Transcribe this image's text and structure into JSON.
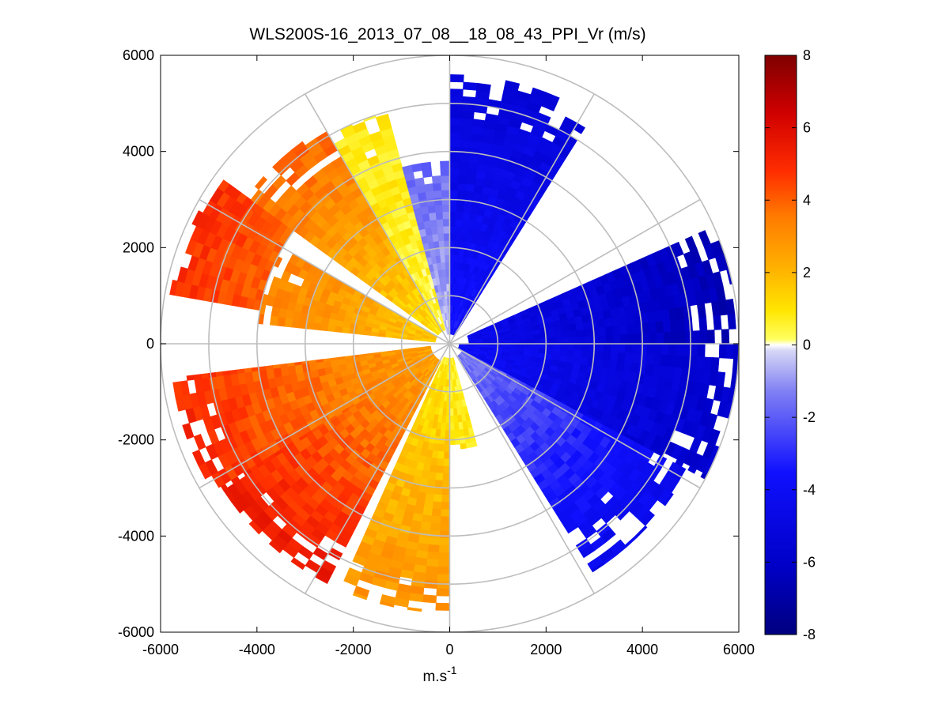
{
  "chart_data": {
    "type": "heatmap",
    "subtype": "polar-ppi-scan",
    "title": "WLS200S-16_2013_07_08__18_08_43_PPI_Vr (m/s)",
    "xlabel_base": "m.s",
    "xlabel_exp": "-1",
    "xlim": [
      -6000,
      6000
    ],
    "ylim": [
      -6000,
      6000
    ],
    "xticks": [
      -6000,
      -4000,
      -2000,
      0,
      2000,
      4000,
      6000
    ],
    "yticks": [
      -6000,
      -4000,
      -2000,
      0,
      2000,
      4000,
      6000
    ],
    "xtick_labels": [
      "-6000",
      "-4000",
      "-2000",
      "0",
      "2000",
      "4000",
      "6000"
    ],
    "ytick_labels": [
      "-6000",
      "-4000",
      "-2000",
      "0",
      "2000",
      "4000",
      "6000"
    ],
    "range_rings": [
      1000,
      2000,
      3000,
      4000,
      5000,
      6000
    ],
    "spoke_angles_deg": [
      0,
      30,
      60,
      90,
      120,
      150,
      180,
      210,
      240,
      270,
      300,
      330
    ],
    "max_range": 6000,
    "colorbar": {
      "min": -8,
      "max": 8,
      "ticks": [
        8,
        6,
        4,
        2,
        0,
        -2,
        -4,
        -6,
        -8
      ],
      "tick_labels": [
        "8",
        "6",
        "4",
        "2",
        "0",
        "-2",
        "-4",
        "-6",
        "-8"
      ],
      "colormap": "blue-white-yellow-red (diverging)"
    },
    "sectors": [
      {
        "name": "north-blue",
        "az_start": 0,
        "az_end": 32,
        "r_min": 200,
        "r_max": 5600,
        "vr_near": -3.5,
        "vr_far": -5.5
      },
      {
        "name": "east-blue",
        "az_start": 66,
        "az_end": 90,
        "r_min": 400,
        "r_max": 6000,
        "vr_near": -4.5,
        "vr_far": -6.8
      },
      {
        "name": "east-southeast-blue",
        "az_start": 90,
        "az_end": 118,
        "r_min": 200,
        "r_max": 6000,
        "vr_near": -4.0,
        "vr_far": -6.0
      },
      {
        "name": "southeast-blue",
        "az_start": 118,
        "az_end": 148,
        "r_min": 300,
        "r_max": 5600,
        "vr_near": -1.5,
        "vr_far": -4.5
      },
      {
        "name": "south-orange",
        "az_start": 180,
        "az_end": 204,
        "r_min": 300,
        "r_max": 5600,
        "vr_near": 0.8,
        "vr_far": 3.0
      },
      {
        "name": "south-southwest-yellow",
        "az_start": 165,
        "az_end": 180,
        "r_min": 300,
        "r_max": 2200,
        "vr_near": 0.6,
        "vr_far": 1.0
      },
      {
        "name": "southwest-red",
        "az_start": 207,
        "az_end": 238,
        "r_min": 400,
        "r_max": 5600,
        "vr_near": 2.5,
        "vr_far": 5.5
      },
      {
        "name": "west-southwest-red",
        "az_start": 238,
        "az_end": 263,
        "r_min": 400,
        "r_max": 5800,
        "vr_near": 2.5,
        "vr_far": 5.0
      },
      {
        "name": "west-northwest-orange",
        "az_start": 276,
        "az_end": 300,
        "r_min": 300,
        "r_max": 4000,
        "vr_near": 1.5,
        "vr_far": 3.5
      },
      {
        "name": "northwest-red",
        "az_start": 280,
        "az_end": 306,
        "r_min": 4000,
        "r_max": 5900,
        "vr_near": 4.0,
        "vr_far": 5.0
      },
      {
        "name": "north-northwest-orange",
        "az_start": 306,
        "az_end": 330,
        "r_min": 300,
        "r_max": 5200,
        "vr_near": 1.0,
        "vr_far": 4.0
      },
      {
        "name": "north-northwest-yellow",
        "az_start": 330,
        "az_end": 345,
        "r_min": 300,
        "r_max": 5000,
        "vr_near": 0.4,
        "vr_far": 1.0
      },
      {
        "name": "north-lightblue",
        "az_start": 345,
        "az_end": 360,
        "r_min": 200,
        "r_max": 3800,
        "vr_near": -0.5,
        "vr_far": -1.8
      }
    ]
  }
}
